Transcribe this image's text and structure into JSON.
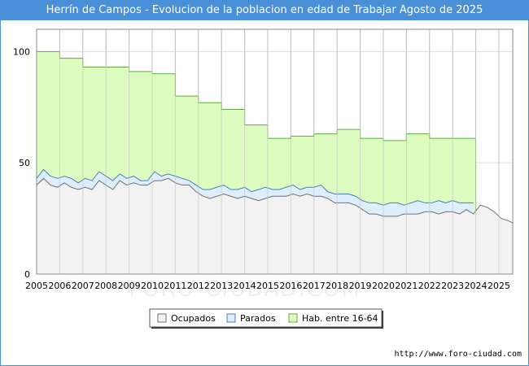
{
  "chart_data": {
    "type": "area",
    "title": "Herrín de Campos - Evolucion de la poblacion en edad de Trabajar Agosto de 2025",
    "x_ticks": [
      "2005",
      "2006",
      "2007",
      "2008",
      "2009",
      "2010",
      "2011",
      "2012",
      "2013",
      "2014",
      "2015",
      "2016",
      "2017",
      "2018",
      "2019",
      "2020",
      "2021",
      "2022",
      "2023",
      "2024",
      "2025"
    ],
    "y_ticks": [
      0,
      50,
      100
    ],
    "ylim": [
      0,
      110
    ],
    "xlim": [
      2005,
      2025.6
    ],
    "grid": true,
    "legend_position": "bottom-center",
    "series": [
      {
        "name": "Hab. entre 16-64",
        "color_fill": "#ddfdc0",
        "color_line": "#5faa3c",
        "step_values": [
          [
            2005,
            100
          ],
          [
            2006,
            97
          ],
          [
            2007,
            93
          ],
          [
            2009,
            91
          ],
          [
            2010,
            90
          ],
          [
            2011,
            80
          ],
          [
            2012,
            77
          ],
          [
            2013,
            74
          ],
          [
            2014,
            67
          ],
          [
            2015,
            61
          ],
          [
            2016,
            62
          ],
          [
            2017,
            63
          ],
          [
            2018,
            65
          ],
          [
            2019,
            61
          ],
          [
            2020,
            60
          ],
          [
            2021,
            63
          ],
          [
            2022,
            61
          ]
        ],
        "end_x": 2024
      },
      {
        "name": "Parados",
        "color_fill": "#dfeeff",
        "color_line": "#4a7dc0",
        "values": [
          [
            2005.0,
            43
          ],
          [
            2005.3,
            47
          ],
          [
            2005.6,
            44
          ],
          [
            2005.9,
            43
          ],
          [
            2006.2,
            44
          ],
          [
            2006.5,
            43
          ],
          [
            2006.8,
            41
          ],
          [
            2007.1,
            43
          ],
          [
            2007.4,
            42
          ],
          [
            2007.7,
            46
          ],
          [
            2008.0,
            44
          ],
          [
            2008.3,
            42
          ],
          [
            2008.6,
            45
          ],
          [
            2008.9,
            43
          ],
          [
            2009.2,
            44
          ],
          [
            2009.5,
            42
          ],
          [
            2009.8,
            42
          ],
          [
            2010.1,
            46
          ],
          [
            2010.4,
            44
          ],
          [
            2010.7,
            45
          ],
          [
            2011.0,
            44
          ],
          [
            2011.3,
            43
          ],
          [
            2011.6,
            42
          ],
          [
            2011.9,
            40
          ],
          [
            2012.2,
            38
          ],
          [
            2012.5,
            38
          ],
          [
            2012.8,
            39
          ],
          [
            2013.1,
            40
          ],
          [
            2013.4,
            38
          ],
          [
            2013.7,
            38
          ],
          [
            2014.0,
            39
          ],
          [
            2014.3,
            37
          ],
          [
            2014.6,
            38
          ],
          [
            2014.9,
            39
          ],
          [
            2015.2,
            38
          ],
          [
            2015.5,
            38
          ],
          [
            2015.8,
            39
          ],
          [
            2016.1,
            40
          ],
          [
            2016.4,
            38
          ],
          [
            2016.7,
            39
          ],
          [
            2017.0,
            39
          ],
          [
            2017.3,
            40
          ],
          [
            2017.6,
            37
          ],
          [
            2017.9,
            36
          ],
          [
            2018.2,
            36
          ],
          [
            2018.5,
            36
          ],
          [
            2018.8,
            35
          ],
          [
            2019.1,
            33
          ],
          [
            2019.4,
            32
          ],
          [
            2019.7,
            32
          ],
          [
            2020.0,
            31
          ],
          [
            2020.3,
            32
          ],
          [
            2020.6,
            32
          ],
          [
            2020.9,
            31
          ],
          [
            2021.2,
            32
          ],
          [
            2021.5,
            33
          ],
          [
            2021.8,
            32
          ],
          [
            2022.1,
            32
          ],
          [
            2022.4,
            33
          ],
          [
            2022.7,
            32
          ],
          [
            2023.0,
            33
          ],
          [
            2023.3,
            32
          ],
          [
            2023.6,
            32
          ],
          [
            2023.9,
            32
          ]
        ]
      },
      {
        "name": "Ocupados",
        "color_fill": "#f2f2f2",
        "color_line": "#707070",
        "values": [
          [
            2005.0,
            40
          ],
          [
            2005.3,
            43
          ],
          [
            2005.6,
            40
          ],
          [
            2005.9,
            39
          ],
          [
            2006.2,
            41
          ],
          [
            2006.5,
            39
          ],
          [
            2006.8,
            38
          ],
          [
            2007.1,
            39
          ],
          [
            2007.4,
            38
          ],
          [
            2007.7,
            42
          ],
          [
            2008.0,
            40
          ],
          [
            2008.3,
            38
          ],
          [
            2008.6,
            42
          ],
          [
            2008.9,
            40
          ],
          [
            2009.2,
            41
          ],
          [
            2009.5,
            40
          ],
          [
            2009.8,
            40
          ],
          [
            2010.1,
            42
          ],
          [
            2010.4,
            42
          ],
          [
            2010.7,
            43
          ],
          [
            2011.0,
            41
          ],
          [
            2011.3,
            40
          ],
          [
            2011.6,
            40
          ],
          [
            2011.9,
            37
          ],
          [
            2012.2,
            35
          ],
          [
            2012.5,
            34
          ],
          [
            2012.8,
            35
          ],
          [
            2013.1,
            36
          ],
          [
            2013.4,
            35
          ],
          [
            2013.7,
            34
          ],
          [
            2014.0,
            35
          ],
          [
            2014.3,
            34
          ],
          [
            2014.6,
            33
          ],
          [
            2014.9,
            34
          ],
          [
            2015.2,
            35
          ],
          [
            2015.5,
            35
          ],
          [
            2015.8,
            35
          ],
          [
            2016.1,
            36
          ],
          [
            2016.4,
            35
          ],
          [
            2016.7,
            36
          ],
          [
            2017.0,
            35
          ],
          [
            2017.3,
            35
          ],
          [
            2017.6,
            34
          ],
          [
            2017.9,
            32
          ],
          [
            2018.2,
            32
          ],
          [
            2018.5,
            32
          ],
          [
            2018.8,
            31
          ],
          [
            2019.1,
            29
          ],
          [
            2019.4,
            27
          ],
          [
            2019.7,
            27
          ],
          [
            2020.0,
            26
          ],
          [
            2020.3,
            26
          ],
          [
            2020.6,
            26
          ],
          [
            2020.9,
            27
          ],
          [
            2021.2,
            27
          ],
          [
            2021.5,
            27
          ],
          [
            2021.8,
            28
          ],
          [
            2022.1,
            28
          ],
          [
            2022.4,
            27
          ],
          [
            2022.7,
            28
          ],
          [
            2023.0,
            28
          ],
          [
            2023.3,
            27
          ],
          [
            2023.6,
            29
          ],
          [
            2023.9,
            27
          ],
          [
            2024.2,
            31
          ],
          [
            2024.5,
            30
          ],
          [
            2024.8,
            28
          ],
          [
            2025.1,
            25
          ],
          [
            2025.4,
            24
          ],
          [
            2025.6,
            23
          ]
        ]
      }
    ]
  },
  "watermark": "FORO-CIUDAD.COM",
  "source": "http://www.foro-ciudad.com"
}
